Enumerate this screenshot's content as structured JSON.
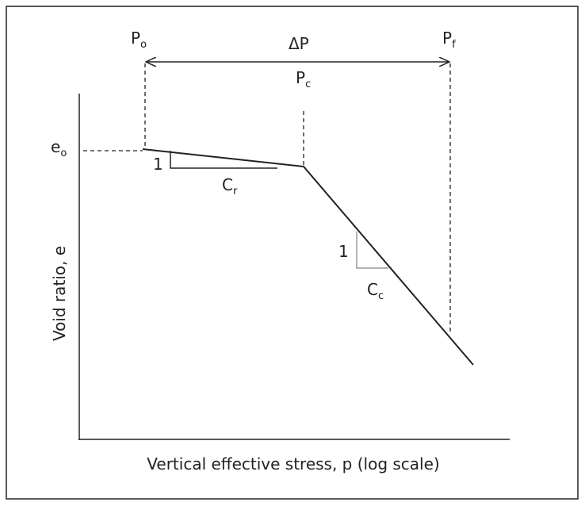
{
  "labels": {
    "p_o": {
      "text": "P",
      "sub": "o"
    },
    "delta_p": {
      "text": "ΔP"
    },
    "p_c": {
      "text": "P",
      "sub": "c"
    },
    "p_f": {
      "text": "P",
      "sub": "f"
    },
    "e_o": {
      "text": "e",
      "sub": "o"
    },
    "slope_r_rise": {
      "text": "1"
    },
    "c_r": {
      "text": "C",
      "sub": "r"
    },
    "slope_c_rise": {
      "text": "1"
    },
    "c_c": {
      "text": "C",
      "sub": "c"
    }
  },
  "y_axis_label": "Void ratio, e",
  "x_axis_label": "Vertical effective stress, p (log scale)"
}
